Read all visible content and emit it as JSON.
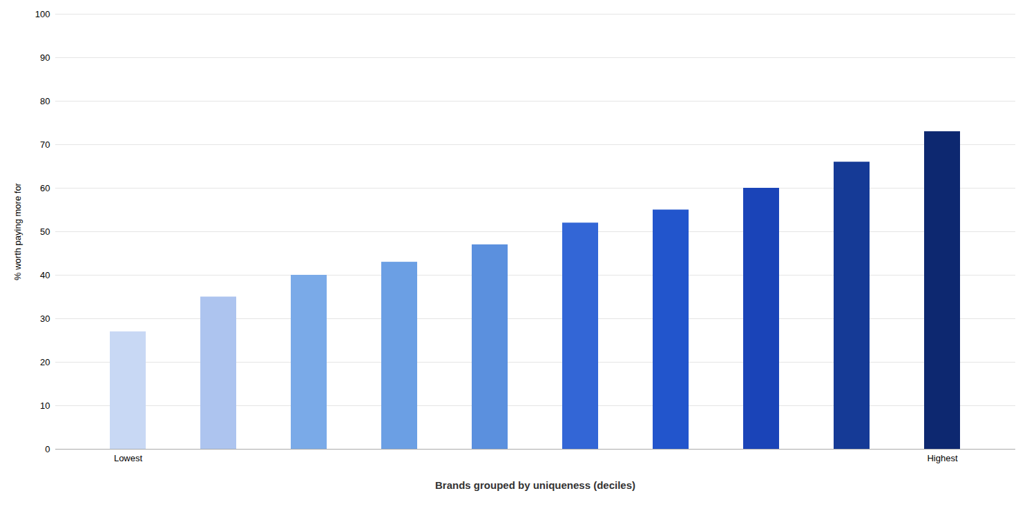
{
  "chart_data": {
    "type": "bar",
    "categories": [
      "Lowest",
      null,
      null,
      null,
      null,
      null,
      null,
      null,
      null,
      "Highest"
    ],
    "values": [
      27,
      35,
      40,
      43,
      47,
      52,
      55,
      60,
      66,
      73
    ],
    "colors": [
      "#c8d8f4",
      "#adc4ef",
      "#7aaae8",
      "#6b9fe4",
      "#5b90de",
      "#3366d6",
      "#2255cc",
      "#1a44b8",
      "#153a96",
      "#0d2870"
    ],
    "xlabel": "Brands grouped by uniqueness (deciles)",
    "ylabel": "% worth paying more for",
    "ylim": [
      0,
      100
    ],
    "yticks": [
      0,
      10,
      20,
      30,
      40,
      50,
      60,
      70,
      80,
      90,
      100
    ],
    "grid": true
  }
}
